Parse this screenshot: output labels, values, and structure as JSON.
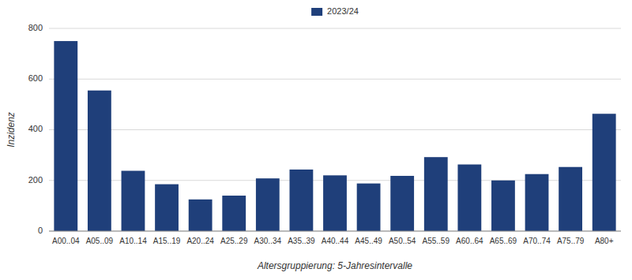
{
  "chart_data": {
    "type": "bar",
    "categories": [
      "A00..04",
      "A05..09",
      "A10..14",
      "A15..19",
      "A20..24",
      "A25..29",
      "A30..34",
      "A35..39",
      "A40..44",
      "A45..49",
      "A50..54",
      "A55..59",
      "A60..64",
      "A65..69",
      "A70..74",
      "A75..79",
      "A80+"
    ],
    "series": [
      {
        "name": "2023/24",
        "color": "#1F3F7A",
        "values": [
          750,
          555,
          238,
          185,
          125,
          140,
          208,
          243,
          220,
          188,
          218,
          292,
          263,
          200,
          225,
          253,
          463
        ]
      }
    ],
    "xlabel": "Altersgruppierung: 5-Jahresintervalle",
    "ylabel": "Inzidenz",
    "ylim": [
      0,
      800
    ],
    "yticks": [
      0,
      200,
      400,
      600,
      800
    ],
    "grid": true,
    "legend": "top"
  }
}
